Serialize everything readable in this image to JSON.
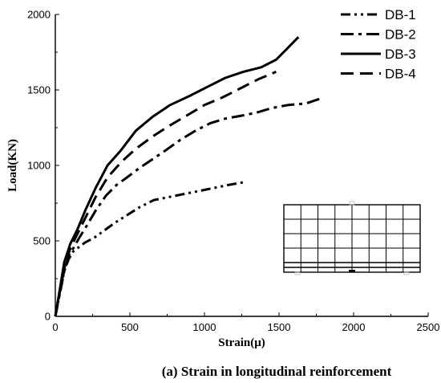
{
  "chart_data": {
    "type": "line",
    "caption": "(a) Strain in longitudinal reinforcement",
    "xlabel": "Strain(μ)",
    "ylabel": "Load(KN)",
    "xlim": [
      0,
      2500
    ],
    "ylim": [
      0,
      2000
    ],
    "xticks": [
      0,
      500,
      1000,
      1500,
      2000,
      2500
    ],
    "yticks": [
      0,
      500,
      1000,
      1500,
      2000
    ],
    "grid": false,
    "legend_position": "top-right",
    "series": [
      {
        "name": "DB-1",
        "dash": "dash-dot-dot",
        "x": [
          0,
          30,
          60,
          90,
          120,
          160,
          200,
          260,
          330,
          400,
          480,
          560,
          660,
          760,
          860,
          960,
          1060,
          1160,
          1270
        ],
        "y": [
          0,
          150,
          300,
          380,
          430,
          460,
          490,
          520,
          570,
          620,
          670,
          720,
          770,
          790,
          810,
          830,
          850,
          870,
          890
        ]
      },
      {
        "name": "DB-2",
        "dash": "long-dash-dot",
        "x": [
          0,
          30,
          60,
          90,
          120,
          160,
          210,
          270,
          340,
          410,
          480,
          560,
          650,
          740,
          840,
          940,
          1040,
          1140,
          1250,
          1350,
          1450,
          1560,
          1680,
          1800
        ],
        "y": [
          0,
          150,
          300,
          400,
          450,
          520,
          600,
          700,
          800,
          870,
          920,
          980,
          1040,
          1100,
          1170,
          1230,
          1280,
          1310,
          1330,
          1350,
          1380,
          1400,
          1410,
          1450
        ]
      },
      {
        "name": "DB-3",
        "dash": "solid",
        "x": [
          0,
          30,
          60,
          100,
          150,
          200,
          270,
          350,
          440,
          540,
          650,
          770,
          900,
          1020,
          1140,
          1260,
          1380,
          1480,
          1560,
          1630
        ],
        "y": [
          0,
          180,
          360,
          480,
          580,
          700,
          850,
          1000,
          1100,
          1230,
          1320,
          1400,
          1460,
          1520,
          1580,
          1620,
          1650,
          1700,
          1780,
          1850
        ]
      },
      {
        "name": "DB-4",
        "dash": "long-dash",
        "x": [
          0,
          30,
          60,
          100,
          150,
          200,
          270,
          350,
          440,
          540,
          650,
          760,
          880,
          1000,
          1120,
          1240,
          1360,
          1480
        ],
        "y": [
          0,
          160,
          320,
          450,
          550,
          650,
          790,
          920,
          1020,
          1110,
          1190,
          1260,
          1330,
          1400,
          1450,
          1510,
          1570,
          1620
        ]
      }
    ]
  },
  "inset": {
    "kind": "beam-grid-diagram",
    "columns": 8,
    "rows": 4
  }
}
